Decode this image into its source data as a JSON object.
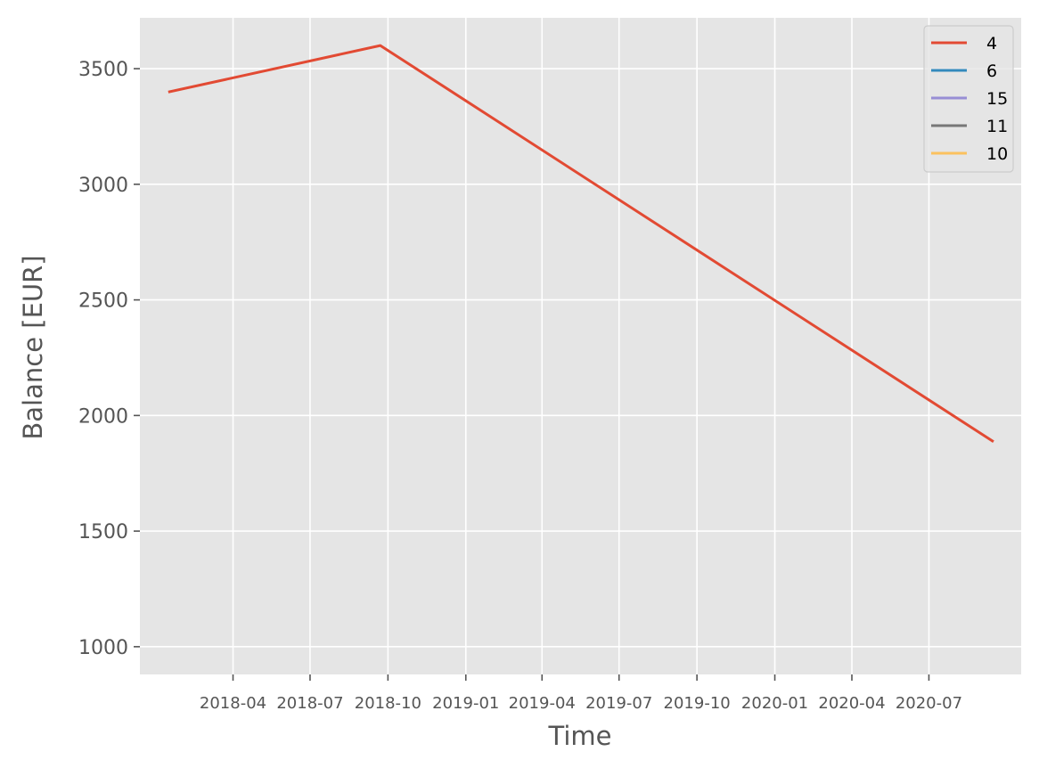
{
  "chart_data": {
    "type": "line",
    "title": "",
    "xlabel": "Time",
    "ylabel": "Balance [EUR]",
    "x_type": "date",
    "xlim": [
      "2017-12-12",
      "2020-10-18"
    ],
    "ylim": [
      880,
      3720
    ],
    "x_ticks": [
      "2018-04",
      "2018-07",
      "2018-10",
      "2019-01",
      "2019-04",
      "2019-07",
      "2019-10",
      "2020-01",
      "2020-04",
      "2020-07"
    ],
    "y_ticks": [
      1000,
      1500,
      2000,
      2500,
      3000,
      3500
    ],
    "grid": true,
    "legend_position": "top-right",
    "colors": {
      "background": "#e5e5e5",
      "grid": "#ffffff",
      "tick": "#555555"
    },
    "series": [
      {
        "name": "4",
        "color": "#E24A33",
        "points": [
          {
            "x": "2018-01-16",
            "y": 3400
          },
          {
            "x": "2018-09-22",
            "y": 3600
          },
          {
            "x": "2020-09-14",
            "y": 1890
          }
        ]
      },
      {
        "name": "6",
        "color": "#348ABD",
        "points": []
      },
      {
        "name": "15",
        "color": "#988ED5",
        "points": []
      },
      {
        "name": "11",
        "color": "#777777",
        "points": []
      },
      {
        "name": "10",
        "color": "#FBC15E",
        "points": []
      }
    ]
  }
}
